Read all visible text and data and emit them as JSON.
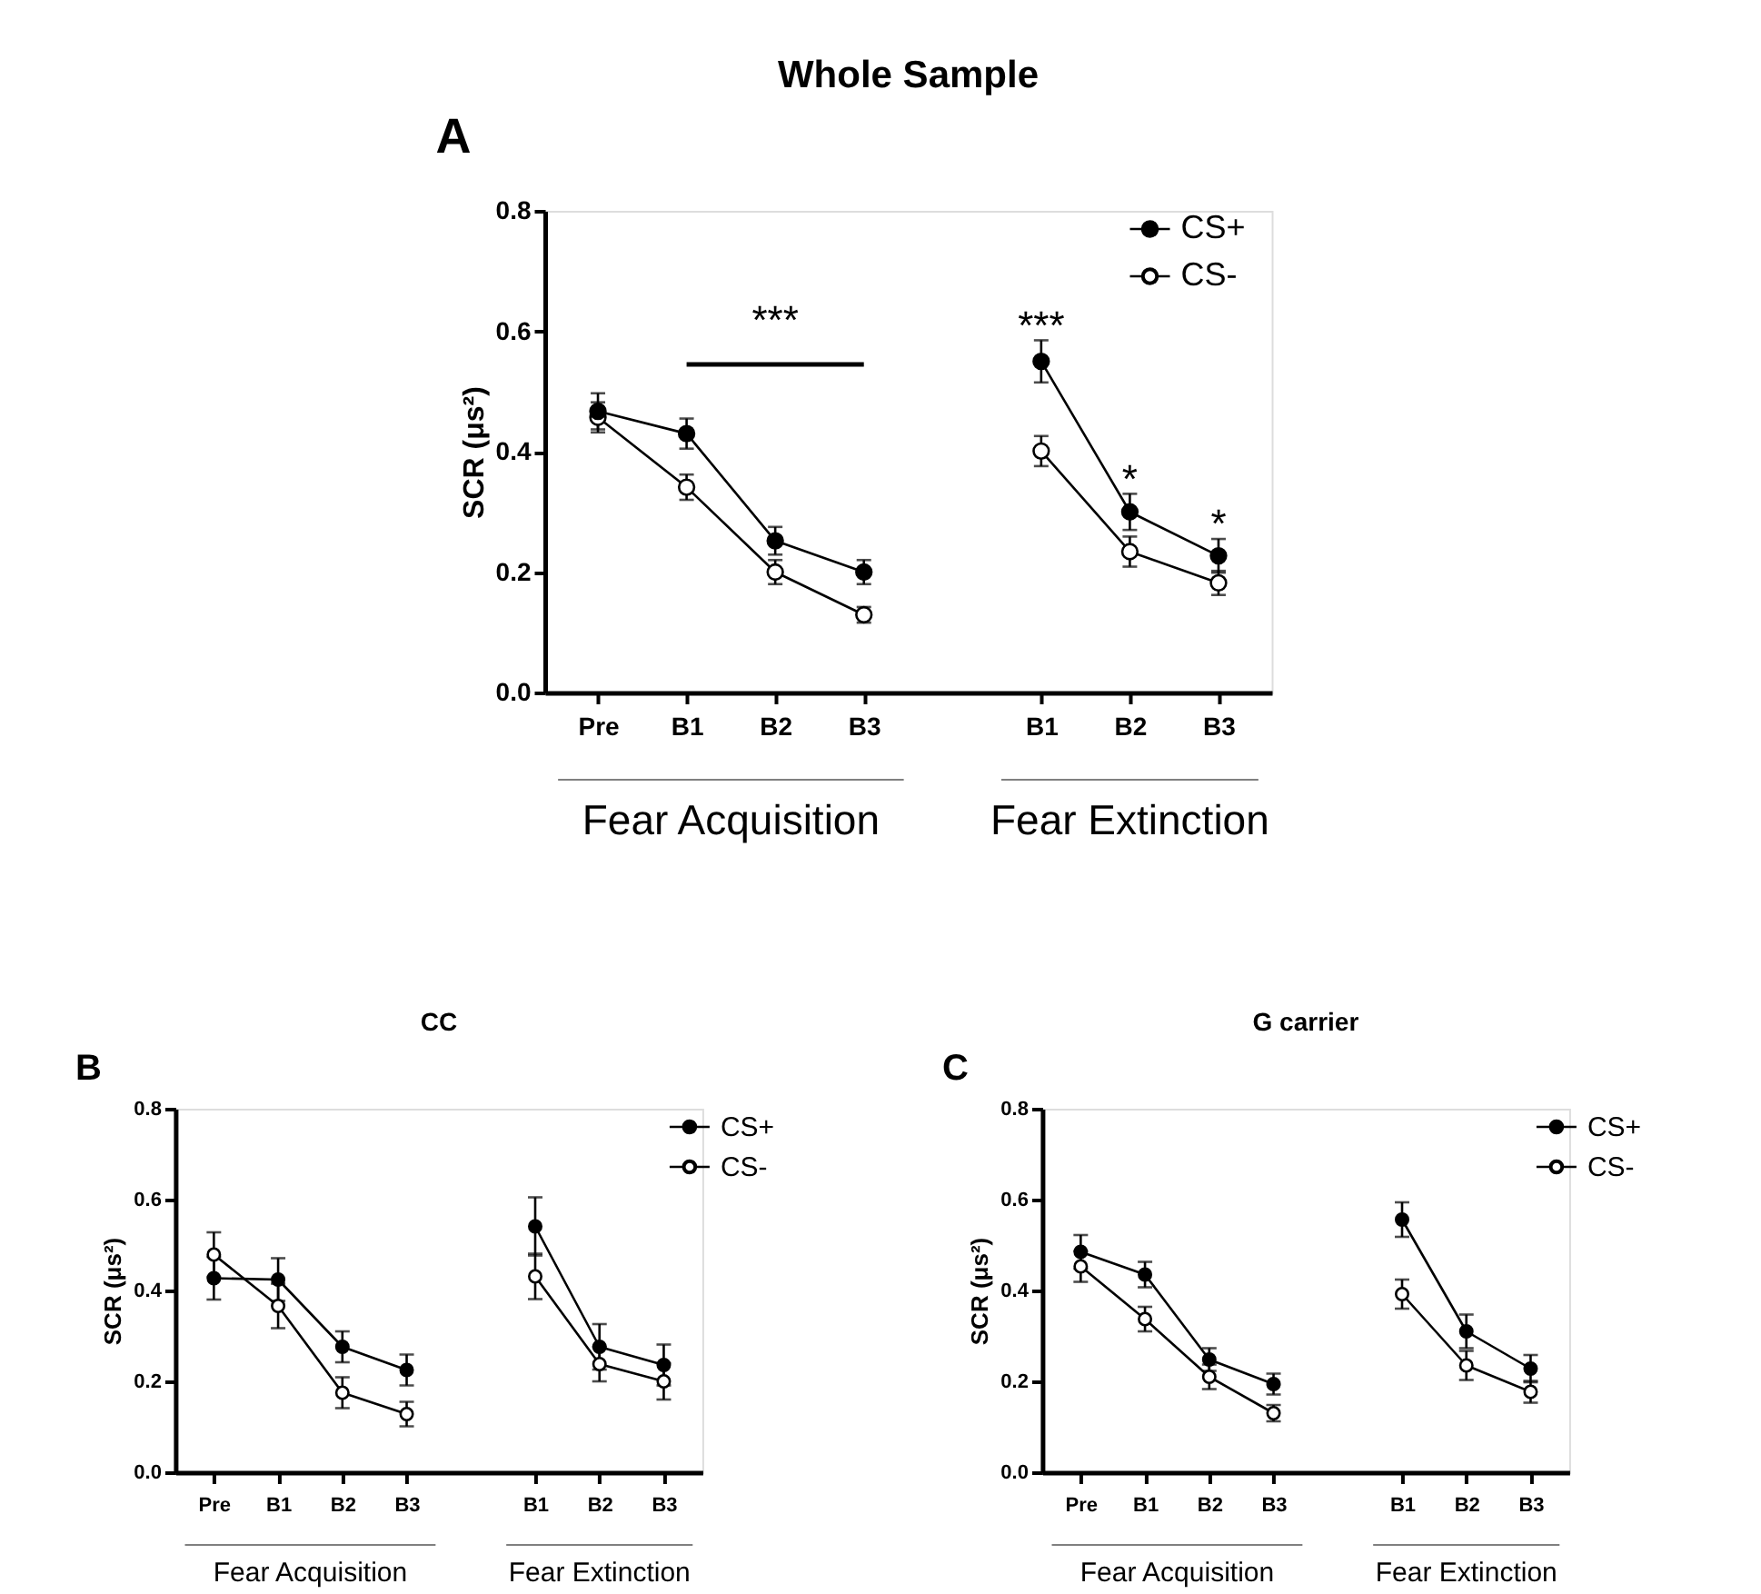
{
  "chart_data": [
    {
      "type": "line",
      "title": "Whole Sample",
      "ylabel": "SCR (μs²)",
      "categories": [
        "Pre",
        "B1",
        "B2",
        "B3",
        null,
        "B1",
        "B2",
        "B3"
      ],
      "ylim": [
        0,
        0.8
      ],
      "yticks": [
        {
          "value": 0,
          "label": "0.0"
        },
        {
          "value": 0.2,
          "label": "0.2"
        },
        {
          "value": 0.4,
          "label": "0.4"
        },
        {
          "value": 0.6,
          "label": "0.6"
        },
        {
          "value": 0.8,
          "label": "0.8"
        }
      ],
      "marker": "circle",
      "line_style": "solid",
      "legend": "top right",
      "grid": false,
      "series": [
        {
          "name": "CS+",
          "color": "#000000",
          "values": [
            0.467,
            0.43,
            0.252,
            0.2,
            null,
            0.55,
            0.3,
            0.227
          ],
          "errors": [
            0.03,
            0.025,
            0.023,
            0.02,
            null,
            0.035,
            0.03,
            0.028
          ]
        },
        {
          "name": "CS-",
          "color": "#ffffff",
          "values": [
            0.457,
            0.341,
            0.2,
            0.129,
            null,
            0.401,
            0.234,
            0.182
          ],
          "errors": [
            0.025,
            0.021,
            0.02,
            0.013,
            null,
            0.025,
            0.025,
            0.02
          ]
        }
      ],
      "annotations": [
        "A",
        "Fear Acquisition",
        "Fear Extinction",
        "***",
        "***",
        "*",
        "*"
      ]
    },
    {
      "type": "line",
      "title": "CC",
      "ylabel": "SCR (μs²)",
      "categories": [
        "Pre",
        "B1",
        "B2",
        "B3",
        null,
        "B1",
        "B2",
        "B3"
      ],
      "ylim": [
        0,
        0.8
      ],
      "yticks": [
        {
          "value": 0,
          "label": "0.0"
        },
        {
          "value": 0.2,
          "label": "0.2"
        },
        {
          "value": 0.4,
          "label": "0.4"
        },
        {
          "value": 0.6,
          "label": "0.6"
        },
        {
          "value": 0.8,
          "label": "0.8"
        }
      ],
      "marker": "circle",
      "line_style": "solid",
      "legend": "top right",
      "grid": false,
      "series": [
        {
          "name": "CS+",
          "color": "#000000",
          "values": [
            0.427,
            0.424,
            0.276,
            0.225,
            null,
            0.541,
            0.276,
            0.236
          ],
          "errors": [
            0.047,
            0.047,
            0.034,
            0.034,
            null,
            0.064,
            0.05,
            0.045
          ]
        },
        {
          "name": "CS-",
          "color": "#ffffff",
          "values": [
            0.479,
            0.366,
            0.175,
            0.128,
            null,
            0.431,
            0.238,
            0.2
          ],
          "errors": [
            0.049,
            0.049,
            0.034,
            0.027,
            null,
            0.05,
            0.038,
            0.04
          ]
        }
      ],
      "annotations": [
        "B",
        "Fear Acquisition",
        "Fear Extinction"
      ]
    },
    {
      "type": "line",
      "title": "G carrier",
      "ylabel": "SCR (μs²)",
      "categories": [
        "Pre",
        "B1",
        "B2",
        "B3",
        null,
        "B1",
        "B2",
        "B3"
      ],
      "ylim": [
        0,
        0.8
      ],
      "yticks": [
        {
          "value": 0,
          "label": "0.0"
        },
        {
          "value": 0.2,
          "label": "0.2"
        },
        {
          "value": 0.4,
          "label": "0.4"
        },
        {
          "value": 0.6,
          "label": "0.6"
        },
        {
          "value": 0.8,
          "label": "0.8"
        }
      ],
      "marker": "circle",
      "line_style": "solid",
      "legend": "top right",
      "grid": false,
      "series": [
        {
          "name": "CS+",
          "color": "#000000",
          "values": [
            0.485,
            0.435,
            0.248,
            0.194,
            null,
            0.556,
            0.31,
            0.228
          ],
          "errors": [
            0.037,
            0.028,
            0.025,
            0.023,
            null,
            0.038,
            0.037,
            0.03
          ]
        },
        {
          "name": "CS-",
          "color": "#ffffff",
          "values": [
            0.453,
            0.337,
            0.21,
            0.13,
            null,
            0.392,
            0.235,
            0.177
          ],
          "errors": [
            0.034,
            0.027,
            0.027,
            0.018,
            null,
            0.032,
            0.032,
            0.024
          ]
        }
      ],
      "annotations": [
        "C",
        "Fear Acquisition",
        "Fear Extinction"
      ]
    }
  ]
}
